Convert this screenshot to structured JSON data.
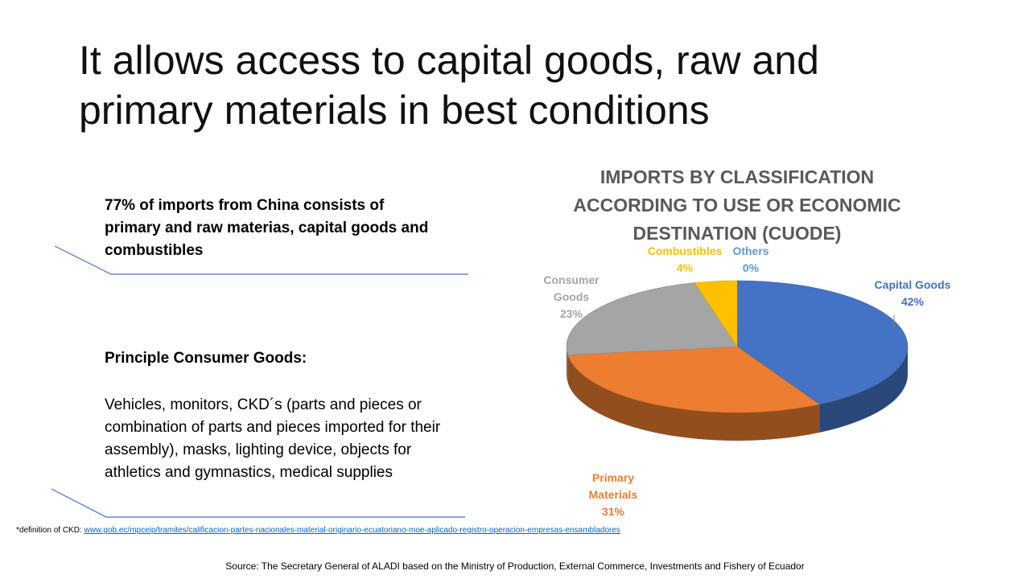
{
  "slide": {
    "title": "It allows access to capital goods, raw and primary materials in best conditions"
  },
  "callouts": {
    "first": "77% of imports from China consists of primary and raw materias, capital goods and combustibles",
    "second_heading": "Principle Consumer Goods:",
    "second_body": "Vehicles, monitors, CKD´s (parts and pieces or combination of parts and pieces imported for their assembly), masks, lighting device, objects for athletics and gymnastics, medical supplies"
  },
  "footnote": {
    "prefix": "*definition of CKD: ",
    "link_text": "www.gob.ec/mpceip/tramites/calificacion-partes-nacionales-material-originario-ecuatoriano-moe-aplicado-registro-operacion-empresas-ensambladores"
  },
  "source": "Source: The Secretary General of ALADI based on the Ministry of Production, External Commerce, Investments and Fishery of Ecuador",
  "chart_data": {
    "type": "pie",
    "title": "IMPORTS BY CLASSIFICATION ACCORDING TO USE OR ECONOMIC DESTINATION (CUODE)",
    "style": "3d",
    "slices": [
      {
        "label": "Capital Goods",
        "value": 42,
        "display": "42%",
        "color": "#4472C4"
      },
      {
        "label": "Primary Materials",
        "value": 31,
        "display": "31%",
        "color": "#ED7D31"
      },
      {
        "label": "Consumer Goods",
        "value": 23,
        "display": "23%",
        "color": "#A5A5A5"
      },
      {
        "label": "Combustibles",
        "value": 4,
        "display": "4%",
        "color": "#FFC000"
      },
      {
        "label": "Others",
        "value": 0,
        "display": "0%",
        "color": "#5B9BD5"
      }
    ]
  },
  "colors": {
    "deco_line": "#4472C4",
    "title_text": "#595959"
  }
}
